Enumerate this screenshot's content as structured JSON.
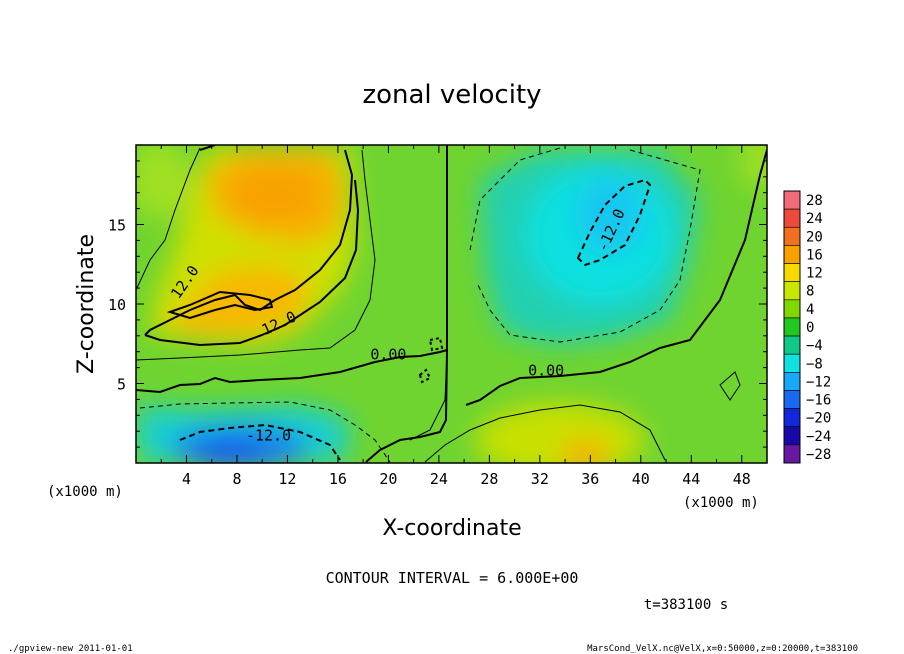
{
  "chart_data": {
    "type": "heatmap",
    "title": "zonal velocity",
    "xlabel": "X-coordinate",
    "ylabel": "Z-coordinate",
    "x_unit_left": "(x1000 m)",
    "x_unit_right": "(x1000 m)",
    "xlim": [
      0,
      50
    ],
    "ylim": [
      0,
      20
    ],
    "x_ticks": [
      4,
      8,
      12,
      16,
      20,
      24,
      28,
      32,
      36,
      40,
      44,
      48
    ],
    "y_ticks": [
      5,
      10,
      15
    ],
    "colorbar_levels": [
      28,
      24,
      20,
      16,
      12,
      8,
      4,
      0,
      -4,
      -8,
      -12,
      -16,
      -20,
      -24,
      -28
    ],
    "colorbar_colors": [
      "#f06a7a",
      "#ec4a3a",
      "#f07020",
      "#f8a000",
      "#f8d800",
      "#c8e800",
      "#80d800",
      "#20c820",
      "#10c888",
      "#10e0e0",
      "#18a8f8",
      "#1868f0",
      "#1028d8",
      "#1808a8",
      "#6818a0"
    ],
    "contour_labels": [
      {
        "text": "12.0",
        "x": 4.2,
        "y": 11.2
      },
      {
        "text": "12.0",
        "x": 11.5,
        "y": 8.5
      },
      {
        "text": "0.00",
        "x": 20.0,
        "y": 6.5
      },
      {
        "text": "0.00",
        "x": 32.5,
        "y": 5.5
      },
      {
        "text": "-12.0",
        "x": 38.0,
        "y": 14.5
      },
      {
        "text": "-12.0",
        "x": 10.5,
        "y": 1.4
      }
    ],
    "contour_interval_text": "CONTOUR INTERVAL = 6.000E+00",
    "time_text": "t=383100 s",
    "grid": false,
    "legend": "right"
  },
  "footer": {
    "left": "./gpview-new   2011-01-01",
    "right": "MarsCond_VelX.nc@VelX,x=0:50000,z=0:20000,t=383100"
  }
}
